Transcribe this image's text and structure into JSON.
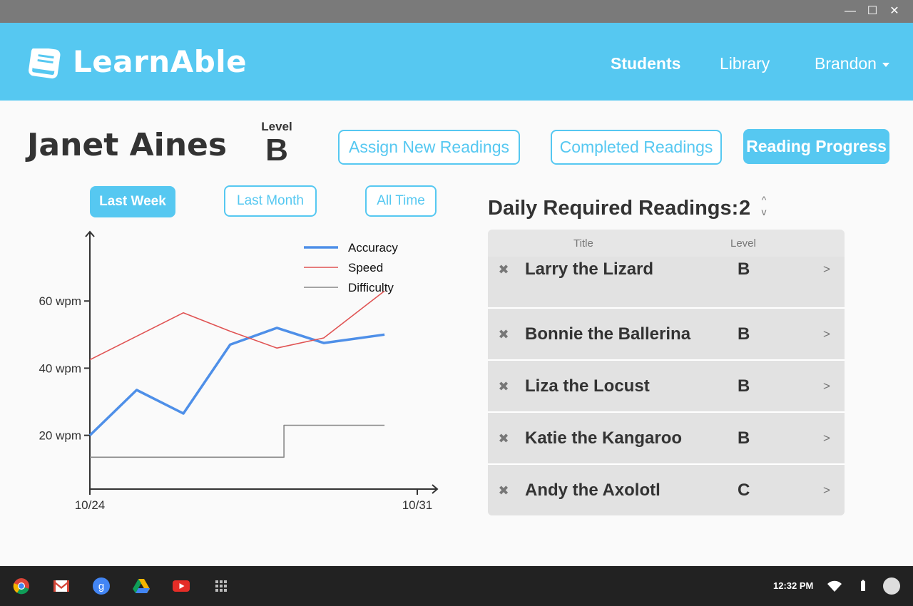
{
  "window": {
    "controls": [
      "—",
      "☐",
      "✕"
    ]
  },
  "app": {
    "name": "LearnAble",
    "nav": {
      "students": "Students",
      "library": "Library",
      "user": "Brandon"
    }
  },
  "student": {
    "name": "Janet Aines",
    "level_label": "Level",
    "level": "B"
  },
  "actions": {
    "assign": "Assign New Readings",
    "completed": "Completed Readings",
    "progress": "Reading Progress"
  },
  "ranges": {
    "week": "Last Week",
    "month": "Last Month",
    "all": "All Time",
    "selected": "Last Week"
  },
  "chart_data": {
    "type": "line",
    "x": [
      "10/24",
      "10/25",
      "10/26",
      "10/27",
      "10/28",
      "10/29",
      "10/30",
      "10/31"
    ],
    "x_tick_labels": [
      "10/24",
      "10/31"
    ],
    "y_ticks": [
      20,
      40,
      60
    ],
    "y_tick_labels": [
      "20 wpm",
      "40 wpm",
      "60 wpm"
    ],
    "ylim": [
      4,
      80
    ],
    "grid": false,
    "legend_position": "top-right",
    "series": [
      {
        "name": "Accuracy",
        "color": "#4e8fe8",
        "values": [
          20,
          33.5,
          26.5,
          47,
          52,
          47.5,
          50,
          null
        ]
      },
      {
        "name": "Speed",
        "color": "#e05353",
        "values": [
          42.5,
          null,
          56.5,
          51,
          46,
          49,
          63,
          null
        ]
      },
      {
        "name": "Difficulty",
        "color": "#888888",
        "values": [
          13.5,
          13.5,
          13.5,
          13.5,
          23,
          23,
          23,
          null
        ]
      }
    ],
    "series_x_positions": [
      [
        0,
        1,
        2,
        3,
        4,
        5,
        6.3
      ],
      [
        0,
        2,
        3,
        4,
        5,
        6.3
      ],
      [
        0,
        4.15,
        4.15,
        6.3
      ]
    ]
  },
  "daily": {
    "label": "Daily Required Readings:",
    "value": "2",
    "up": "^",
    "down": "v"
  },
  "readings": {
    "col_title": "Title",
    "col_level": "Level",
    "rows": [
      {
        "title": "Larry the Lizard",
        "level": "B"
      },
      {
        "title": "Bonnie the Ballerina",
        "level": "B"
      },
      {
        "title": "Liza the Locust",
        "level": "B"
      },
      {
        "title": "Katie the Kangaroo",
        "level": "B"
      },
      {
        "title": "Andy the Axolotl",
        "level": "C"
      }
    ],
    "remove_glyph": "✖",
    "open_glyph": ">"
  },
  "shelf": {
    "time": "12:32 PM",
    "apps": [
      "chrome-icon",
      "gmail-icon",
      "google-search-icon",
      "drive-icon",
      "youtube-icon",
      "app-launcher-icon"
    ]
  }
}
